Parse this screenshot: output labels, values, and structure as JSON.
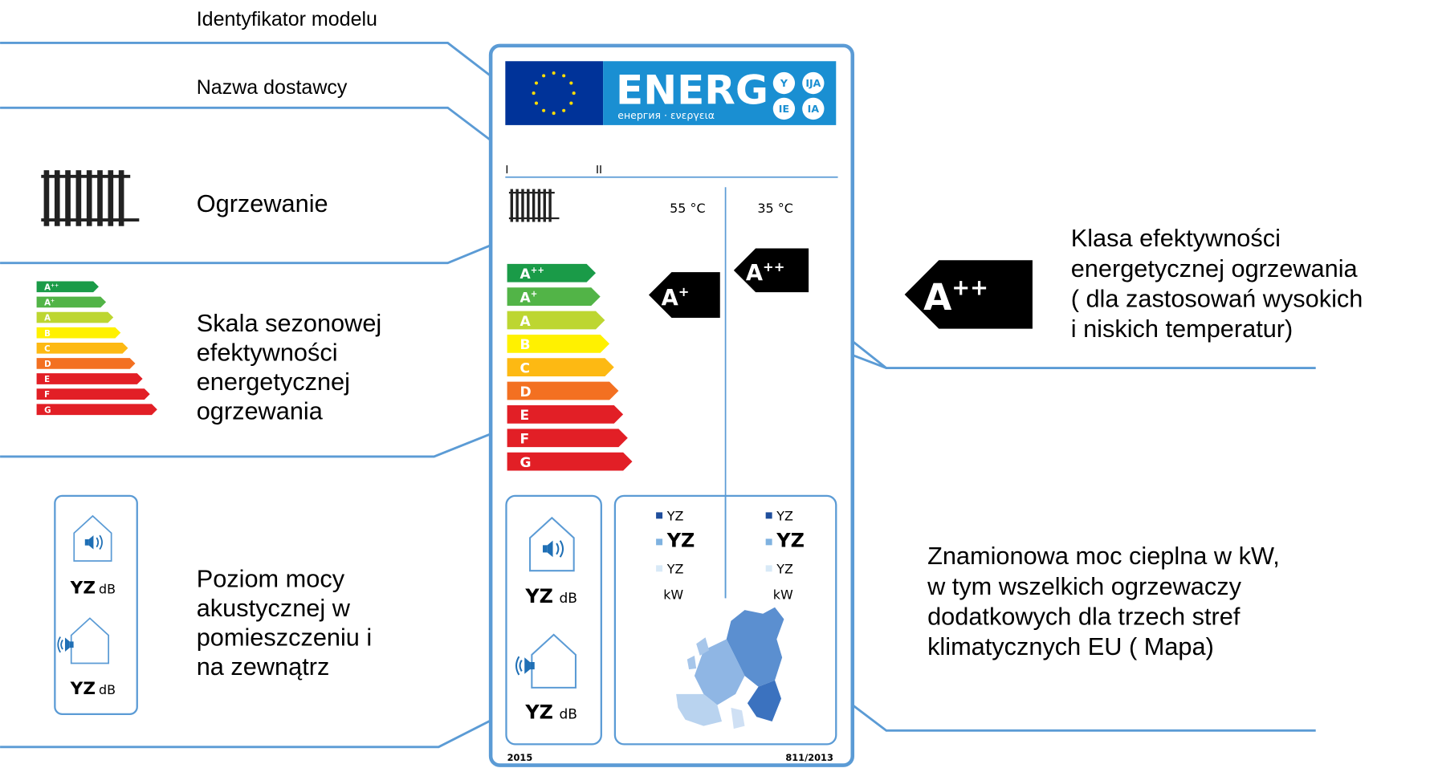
{
  "annotations": {
    "model_id": "Identyfikator modelu",
    "supplier": "Nazwa dostawcy",
    "heating": "Ogrzewanie",
    "scale": [
      "Skala sezonowej",
      "efektywności",
      "energetycznej",
      "ogrzewania"
    ],
    "sound": [
      "Poziom mocy",
      "akustycznej w",
      "pomieszczeniu i",
      "na zewnątrz"
    ],
    "class": [
      "Klasa efektywności",
      "energetycznej ogrzewania",
      "( dla zastosowań wysokich",
      "i niskich temperatur)"
    ],
    "power": [
      "Znamionowa moc cieplna w kW,",
      "w tym wszelkich ogrzewaczy",
      "dodatkowych dla trzech stref",
      "klimatycznych EU ( Mapa)"
    ]
  },
  "label": {
    "brand": "ENERG",
    "subtitle": "енергия · ενεργεια",
    "badges_round": [
      "Y",
      "IJA",
      "IE",
      "IA"
    ],
    "supplier_mark": "I",
    "model_mark": "II",
    "temps": [
      "55 °C",
      "35 °C"
    ],
    "classes": [
      {
        "letter": "A",
        "sup": "++",
        "color": "#1a9b48"
      },
      {
        "letter": "A",
        "sup": "+",
        "color": "#52b447"
      },
      {
        "letter": "A",
        "color": "#bdd631"
      },
      {
        "letter": "B",
        "color": "#fff100"
      },
      {
        "letter": "C",
        "color": "#fdb913"
      },
      {
        "letter": "D",
        "color": "#f37021"
      },
      {
        "letter": "E",
        "color": "#e21f26"
      },
      {
        "letter": "F",
        "color": "#e21f26"
      },
      {
        "letter": "G",
        "color": "#e21f26"
      }
    ],
    "ratings": [
      {
        "letter": "A",
        "sup": "+"
      },
      {
        "letter": "A",
        "sup": "++"
      }
    ],
    "yz": "YZ",
    "db": "dB",
    "kw": "kW",
    "year": "2015",
    "regulation": "811/2013"
  }
}
